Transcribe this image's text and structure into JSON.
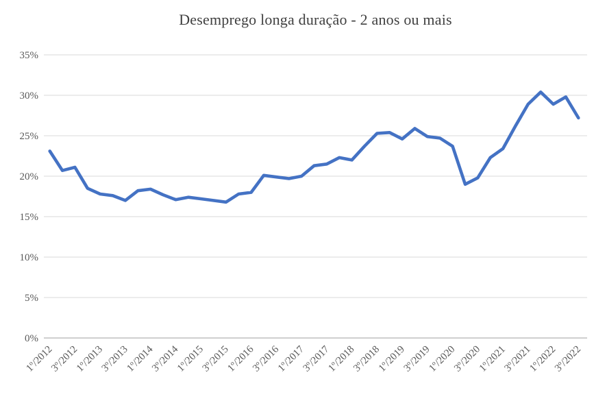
{
  "colors": {
    "line": "#4472C4",
    "grid": "#D9D9D9",
    "axis_line": "#BFBFBF",
    "title_text": "#404040",
    "tick_text": "#595959",
    "background": "#FFFFFF"
  },
  "chart_data": {
    "type": "line",
    "title": "Desemprego longa duração - 2 anos ou mais",
    "xlabel": "",
    "ylabel": "",
    "ylim": [
      0,
      35
    ],
    "y_tick_step": 5,
    "y_tick_labels": [
      "0%",
      "5%",
      "10%",
      "15%",
      "20%",
      "25%",
      "30%",
      "35%"
    ],
    "grid": "horizontal",
    "legend": "none",
    "x": [
      "1º/2012",
      "2º/2012",
      "3º/2012",
      "4º/2012",
      "1º/2013",
      "2º/2013",
      "3º/2013",
      "4º/2013",
      "1º/2014",
      "2º/2014",
      "3º/2014",
      "4º/2014",
      "1º/2015",
      "2º/2015",
      "3º/2015",
      "4º/2015",
      "1º/2016",
      "2º/2016",
      "3º/2016",
      "4º/2016",
      "1º/2017",
      "2º/2017",
      "3º/2017",
      "4º/2017",
      "1º/2018",
      "2º/2018",
      "3º/2018",
      "4º/2018",
      "1º/2019",
      "2º/2019",
      "3º/2019",
      "4º/2019",
      "1º/2020",
      "2º/2020",
      "3º/2020",
      "4º/2020",
      "1º/2021",
      "2º/2021",
      "3º/2021",
      "4º/2021",
      "1º/2022",
      "2º/2022",
      "3º/2022"
    ],
    "x_tick_labels": [
      "1º/2012",
      "3º/2012",
      "1º/2013",
      "3º/2013",
      "1º/2014",
      "3º/2014",
      "1º/2015",
      "3º/2015",
      "1º/2016",
      "3º/2016",
      "1º/2017",
      "3º/2017",
      "1º/2018",
      "3º/2018",
      "1º/2019",
      "3º/2019",
      "1º/2020",
      "3º/2020",
      "1º/2021",
      "3º/2021",
      "1º/2022",
      "3º/2022"
    ],
    "x_tick_every": 2,
    "series": [
      {
        "name": "Desemprego longa duração - 2 anos ou mais",
        "values": [
          23.1,
          20.7,
          21.1,
          18.5,
          17.8,
          17.6,
          17.0,
          18.2,
          18.4,
          17.7,
          17.1,
          17.4,
          17.2,
          17.0,
          16.8,
          17.8,
          18.0,
          20.1,
          19.9,
          19.7,
          20.0,
          21.3,
          21.5,
          22.3,
          22.0,
          23.7,
          25.3,
          25.4,
          24.6,
          25.9,
          24.9,
          24.7,
          23.7,
          19.0,
          19.8,
          22.3,
          23.4,
          26.2,
          28.9,
          30.4,
          28.9,
          29.8,
          27.2
        ]
      }
    ]
  }
}
